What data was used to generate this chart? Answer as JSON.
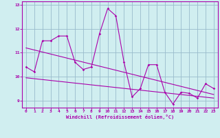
{
  "xlabel": "Windchill (Refroidissement éolien,°C)",
  "bg_color": "#d0eef0",
  "line_color": "#aa00aa",
  "grid_color": "#99bbcc",
  "xlim": [
    -0.5,
    23.5
  ],
  "ylim": [
    8.7,
    13.15
  ],
  "yticks": [
    9,
    10,
    11,
    12,
    13
  ],
  "xticks": [
    0,
    1,
    2,
    3,
    4,
    5,
    6,
    7,
    8,
    9,
    10,
    11,
    12,
    13,
    14,
    15,
    16,
    17,
    18,
    19,
    20,
    21,
    22,
    23
  ],
  "series1_x": [
    0,
    1,
    2,
    3,
    4,
    5,
    6,
    7,
    8,
    9,
    10,
    11,
    12,
    13,
    14,
    15,
    16,
    17,
    18,
    19,
    20,
    21,
    22,
    23
  ],
  "series1_y": [
    10.4,
    10.2,
    11.5,
    11.5,
    11.7,
    11.7,
    10.6,
    10.3,
    10.4,
    11.8,
    12.85,
    12.55,
    10.6,
    9.15,
    9.5,
    10.5,
    10.5,
    9.35,
    8.85,
    9.35,
    9.3,
    9.1,
    9.7,
    9.5
  ],
  "trend1_x": [
    0,
    23
  ],
  "trend1_y": [
    11.2,
    9.25
  ],
  "trend2_x": [
    0,
    23
  ],
  "trend2_y": [
    9.95,
    9.1
  ]
}
